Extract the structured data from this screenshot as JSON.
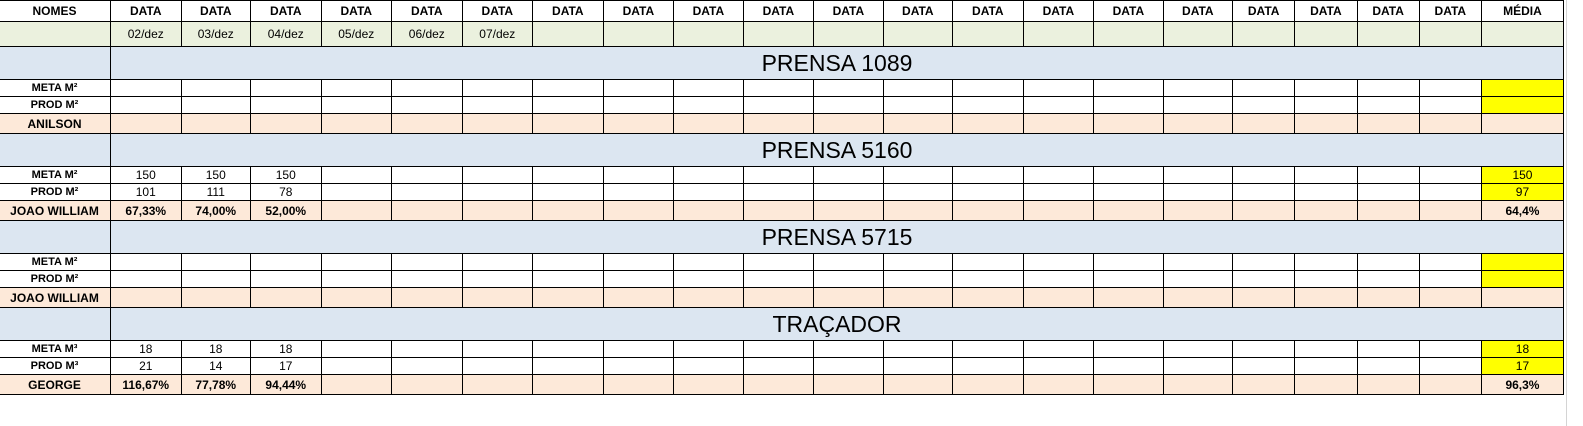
{
  "header": {
    "names_label": "NOMES",
    "date_label": "DATA",
    "avg_label": "MÉDIA",
    "date_count": 20
  },
  "dates": [
    "02/dez",
    "03/dez",
    "04/dez",
    "05/dez",
    "06/dez",
    "07/dez",
    "",
    "",
    "",
    "",
    "",
    "",
    "",
    "",
    "",
    "",
    "",
    "",
    "",
    ""
  ],
  "colors": {
    "date_row": "#ebf1de",
    "section_title": "#dce6f1",
    "name_row": "#fde9d9",
    "avg_highlight": "#ffff00"
  },
  "sections": [
    {
      "title": "PRENSA 1089",
      "meta_label": "META M²",
      "prod_label": "PROD M²",
      "name": "ANILSON",
      "meta": [],
      "prod": [],
      "pct": [],
      "avg_meta": "",
      "avg_prod": "",
      "avg_pct": ""
    },
    {
      "title": "PRENSA 5160",
      "meta_label": "META M²",
      "prod_label": "PROD M²",
      "name": "JOAO WILLIAM",
      "meta": [
        "150",
        "150",
        "150"
      ],
      "prod": [
        "101",
        "111",
        "78"
      ],
      "pct": [
        "67,33%",
        "74,00%",
        "52,00%"
      ],
      "avg_meta": "150",
      "avg_prod": "97",
      "avg_pct": "64,4%"
    },
    {
      "title": "PRENSA 5715",
      "meta_label": "META M²",
      "prod_label": "PROD M²",
      "name": "JOAO WILLIAM",
      "meta": [],
      "prod": [],
      "pct": [],
      "avg_meta": "",
      "avg_prod": "",
      "avg_pct": ""
    },
    {
      "title": "TRAÇADOR",
      "meta_label": "META M³",
      "prod_label": "PROD M³",
      "name": "GEORGE",
      "meta": [
        "18",
        "18",
        "18"
      ],
      "prod": [
        "21",
        "14",
        "17"
      ],
      "pct": [
        "116,67%",
        "77,78%",
        "94,44%"
      ],
      "avg_meta": "18",
      "avg_prod": "17",
      "avg_pct": "96,3%"
    }
  ]
}
